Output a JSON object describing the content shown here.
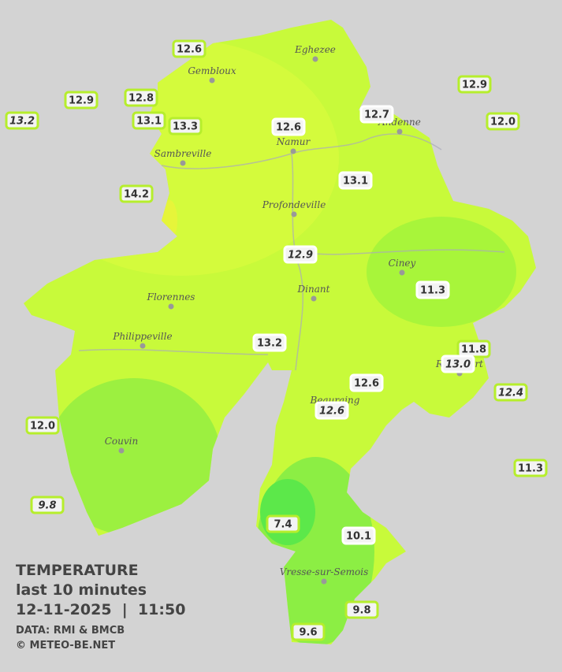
{
  "legend": {
    "title": "TEMPERATURE",
    "subtitle": "last 10 minutes",
    "datetime": "12-11-2025  |  11:50",
    "source": "DATA: RMI & BMCB",
    "copyright": "© METEO-BE.NET"
  },
  "towns": [
    "Eghezee",
    "Gembloux",
    "Andenne",
    "Namur",
    "Sambreville",
    "Profondeville",
    "Ciney",
    "Dinant",
    "Florennes",
    "Philippeville",
    "Rochefort",
    "Beauraing",
    "Couvin",
    "Vresse-sur-Semois"
  ],
  "stations": [
    {
      "text": "12.6"
    },
    {
      "text": "12.9"
    },
    {
      "text": "12.8"
    },
    {
      "text": "13.2"
    },
    {
      "text": "13.1"
    },
    {
      "text": "13.3"
    },
    {
      "text": "12.6"
    },
    {
      "text": "12.7"
    },
    {
      "text": "12.9"
    },
    {
      "text": "12.0"
    },
    {
      "text": "13.1"
    },
    {
      "text": "14.2"
    },
    {
      "text": "12.9"
    },
    {
      "text": "11.3"
    },
    {
      "text": "13.2"
    },
    {
      "text": "11.8"
    },
    {
      "text": "13.0"
    },
    {
      "text": "12.6"
    },
    {
      "text": "12.4"
    },
    {
      "text": "12.6"
    },
    {
      "text": "12.0"
    },
    {
      "text": "11.3"
    },
    {
      "text": "9.8"
    },
    {
      "text": "7.4"
    },
    {
      "text": "10.1"
    },
    {
      "text": "9.8"
    },
    {
      "text": "9.6"
    }
  ]
}
